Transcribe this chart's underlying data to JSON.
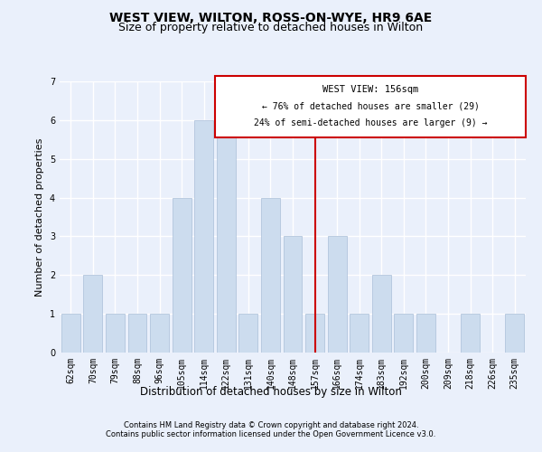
{
  "title": "WEST VIEW, WILTON, ROSS-ON-WYE, HR9 6AE",
  "subtitle": "Size of property relative to detached houses in Wilton",
  "xlabel": "Distribution of detached houses by size in Wilton",
  "ylabel": "Number of detached properties",
  "categories": [
    "62sqm",
    "70sqm",
    "79sqm",
    "88sqm",
    "96sqm",
    "105sqm",
    "114sqm",
    "122sqm",
    "131sqm",
    "140sqm",
    "148sqm",
    "157sqm",
    "166sqm",
    "174sqm",
    "183sqm",
    "192sqm",
    "200sqm",
    "209sqm",
    "218sqm",
    "226sqm",
    "235sqm"
  ],
  "values": [
    1,
    2,
    1,
    1,
    1,
    4,
    6,
    6,
    1,
    4,
    3,
    1,
    3,
    1,
    2,
    1,
    1,
    0,
    1,
    0,
    1
  ],
  "bar_color": "#ccdcee",
  "bar_edge_color": "#aabfd8",
  "ylim": [
    0,
    7
  ],
  "yticks": [
    0,
    1,
    2,
    3,
    4,
    5,
    6,
    7
  ],
  "marker_index": 11,
  "marker_label": "WEST VIEW: 156sqm",
  "marker_color": "#cc0000",
  "annotation_line1": "← 76% of detached houses are smaller (29)",
  "annotation_line2": "24% of semi-detached houses are larger (9) →",
  "footnote1": "Contains HM Land Registry data © Crown copyright and database right 2024.",
  "footnote2": "Contains public sector information licensed under the Open Government Licence v3.0.",
  "background_color": "#eaf0fb",
  "grid_color": "#ffffff",
  "title_fontsize": 10,
  "subtitle_fontsize": 9,
  "tick_fontsize": 7,
  "ylabel_fontsize": 8,
  "xlabel_fontsize": 8.5
}
